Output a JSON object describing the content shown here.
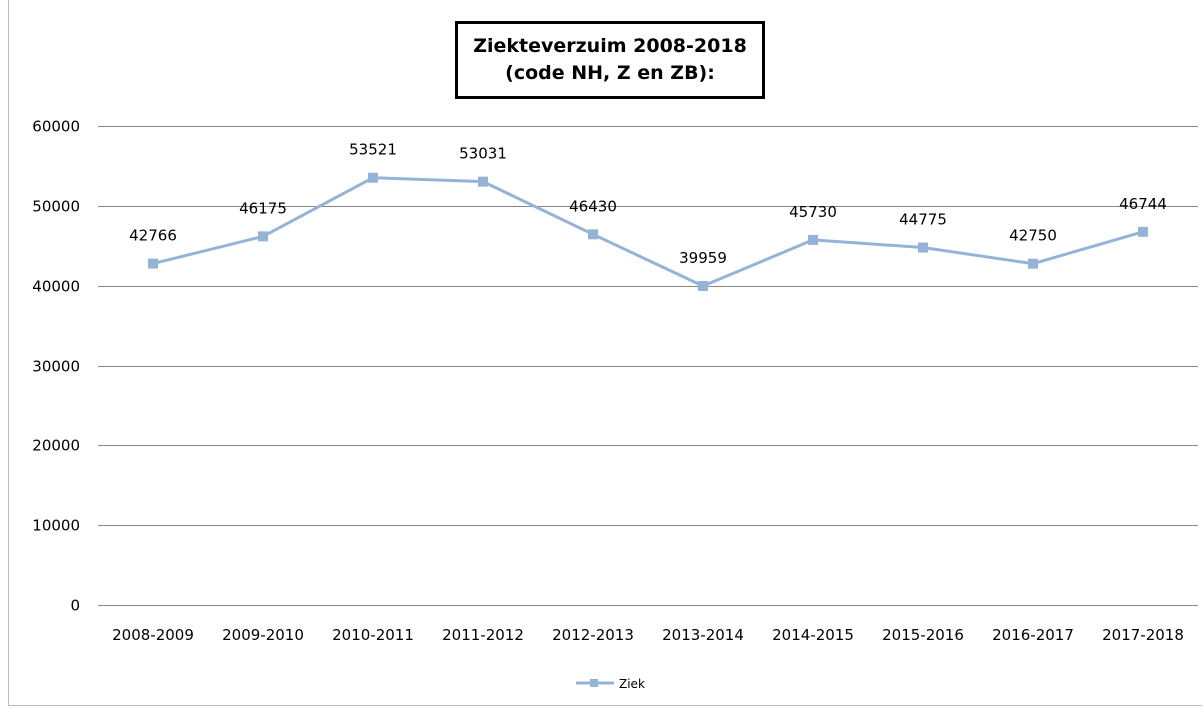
{
  "chart_data": {
    "type": "line",
    "title": "Ziekteverzuim 2008-2018",
    "subtitle": "(code NH, Z en ZB):",
    "xlabel": "",
    "ylabel": "",
    "categories": [
      "2008-2009",
      "2009-2010",
      "2010-2011",
      "2011-2012",
      "2012-2013",
      "2013-2014",
      "2014-2015",
      "2015-2016",
      "2016-2017",
      "2017-2018"
    ],
    "series": [
      {
        "name": "Ziek",
        "values": [
          42766,
          46175,
          53521,
          53031,
          46430,
          39959,
          45730,
          44775,
          42750,
          46744
        ],
        "color": "#95b3d7",
        "marker": "square"
      }
    ],
    "ylim": [
      0,
      60000
    ],
    "yticks": [
      0,
      10000,
      20000,
      30000,
      40000,
      50000,
      60000
    ],
    "grid": true,
    "legend_position": "bottom",
    "gridline_color": "#868686"
  }
}
